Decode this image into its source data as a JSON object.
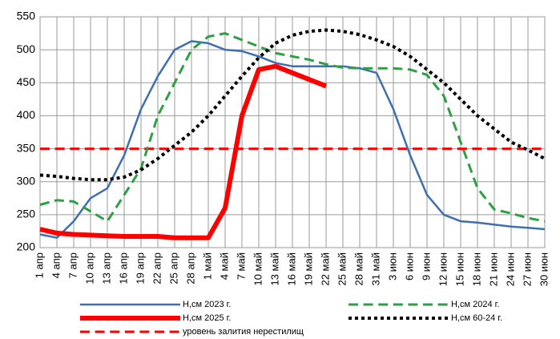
{
  "chart_data": {
    "type": "line",
    "categories": [
      "1 апр",
      "4 апр",
      "7 апр",
      "10 апр",
      "13 апр",
      "16 апр",
      "19 апр",
      "22 апр",
      "25 апр",
      "28 апр",
      "1 май",
      "4 май",
      "7 май",
      "10 май",
      "13 май",
      "16 май",
      "19 май",
      "22 май",
      "25 май",
      "28 май",
      "31 май",
      "3 июн",
      "6 июн",
      "9 июн",
      "12 июн",
      "15 июн",
      "18 июн",
      "21 июн",
      "24 июн",
      "27 июн",
      "30 июн"
    ],
    "series": [
      {
        "name": "Н,см 2023 г.",
        "color": "#3f6fb0",
        "style": "solid",
        "width": 2.5,
        "values": [
          220,
          215,
          240,
          275,
          290,
          340,
          410,
          460,
          500,
          513,
          510,
          500,
          498,
          490,
          480,
          475,
          475,
          475,
          475,
          472,
          465,
          410,
          340,
          280,
          250,
          240,
          238,
          235,
          232,
          230,
          228
        ]
      },
      {
        "name": "Н,см 2024 г.",
        "color": "#2ea043",
        "style": "dashed",
        "width": 3,
        "values": [
          265,
          272,
          270,
          255,
          240,
          280,
          320,
          400,
          450,
          500,
          520,
          525,
          515,
          505,
          495,
          490,
          485,
          478,
          473,
          472,
          472,
          472,
          470,
          462,
          430,
          360,
          290,
          258,
          252,
          245,
          240
        ]
      },
      {
        "name": "Н,см 2025 г.",
        "color": "#ff0000",
        "style": "solid",
        "width": 6,
        "values": [
          228,
          222,
          220,
          219,
          218,
          217,
          217,
          217,
          215,
          215,
          215,
          260,
          400,
          470,
          475,
          465,
          455,
          445,
          null,
          null,
          null,
          null,
          null,
          null,
          null,
          null,
          null,
          null,
          null,
          null,
          null
        ]
      },
      {
        "name": "Н,см 60-24 г.",
        "color": "#000000",
        "style": "dotted",
        "width": 4,
        "values": [
          310,
          308,
          305,
          303,
          303,
          307,
          318,
          335,
          355,
          375,
          400,
          430,
          460,
          488,
          510,
          522,
          528,
          530,
          528,
          523,
          515,
          505,
          490,
          470,
          450,
          425,
          400,
          380,
          360,
          348,
          335
        ]
      }
    ],
    "reference_lines": [
      {
        "name": "уровень залития нерестилищ",
        "value": 350,
        "color": "#ff0000",
        "style": "dashed",
        "width": 3
      }
    ],
    "ylim": [
      200,
      550
    ],
    "yticks": [
      200,
      250,
      300,
      350,
      400,
      450,
      500,
      550
    ],
    "grid": true
  }
}
